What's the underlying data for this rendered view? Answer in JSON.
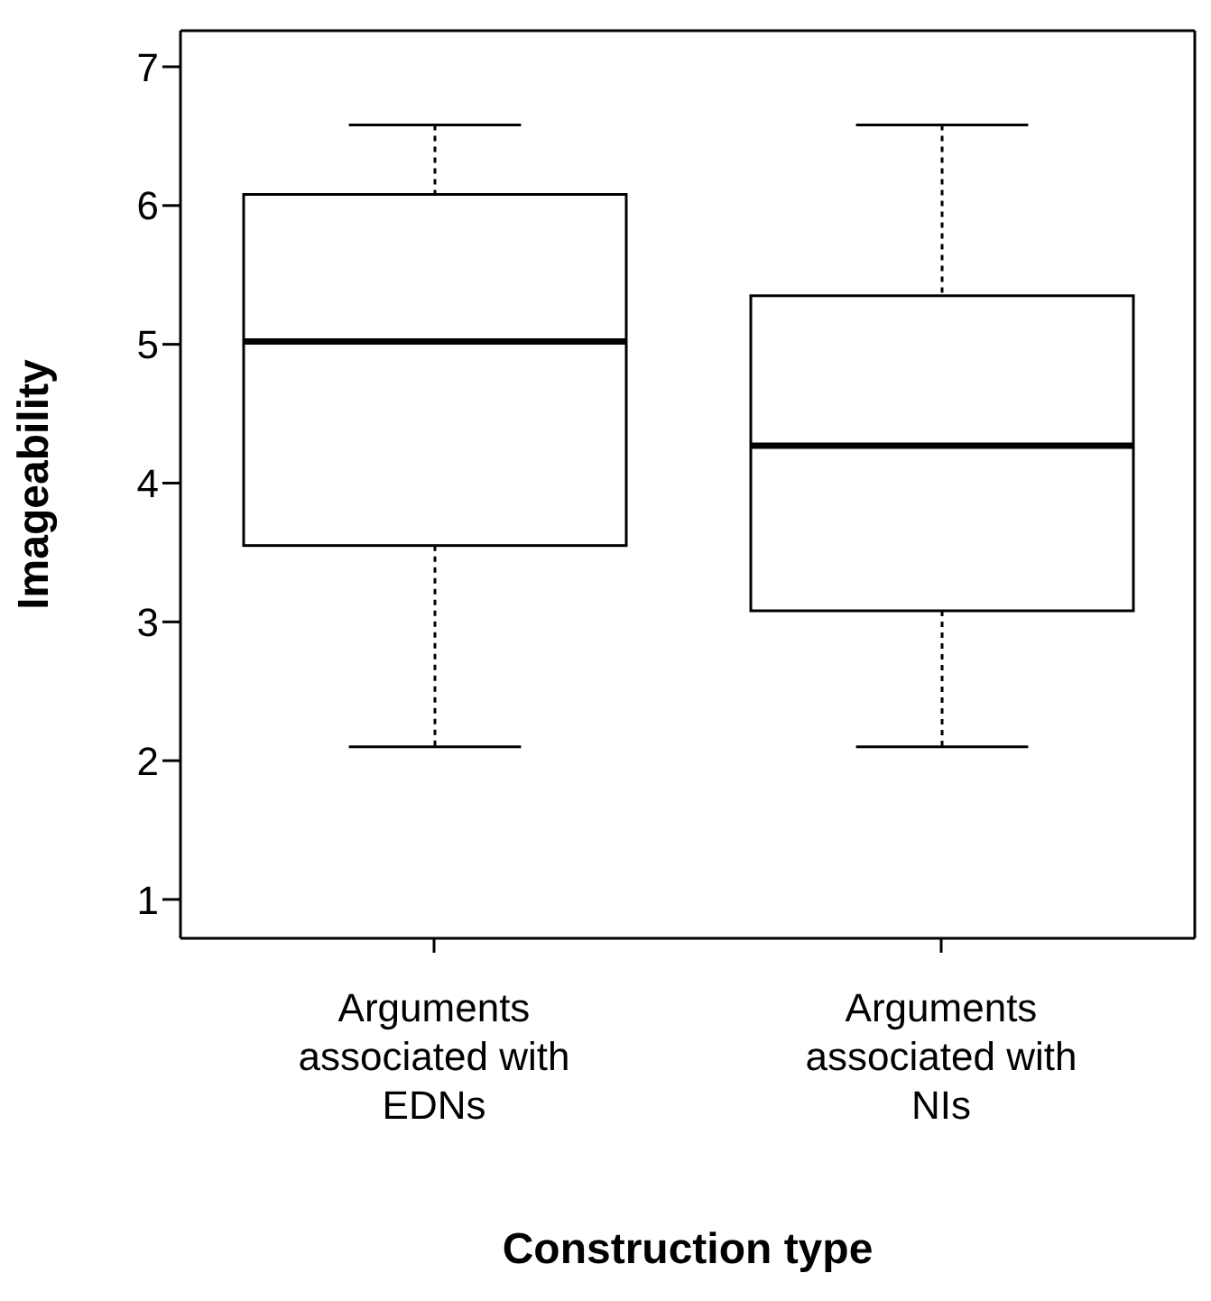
{
  "chart_data": {
    "type": "box",
    "xlabel": "Construction type",
    "ylabel": "Imageability",
    "categories": [
      "Arguments associated with EDNs",
      "Arguments associated with NIs"
    ],
    "boxes": [
      {
        "low": 2.1,
        "q1": 3.55,
        "median": 5.02,
        "q3": 6.08,
        "high": 6.58
      },
      {
        "low": 2.1,
        "q1": 3.08,
        "median": 4.27,
        "q3": 5.35,
        "high": 6.58
      }
    ],
    "ylim": [
      0.72,
      7.26
    ],
    "yticks": [
      1,
      2,
      3,
      4,
      5,
      6,
      7
    ],
    "grid": false
  }
}
